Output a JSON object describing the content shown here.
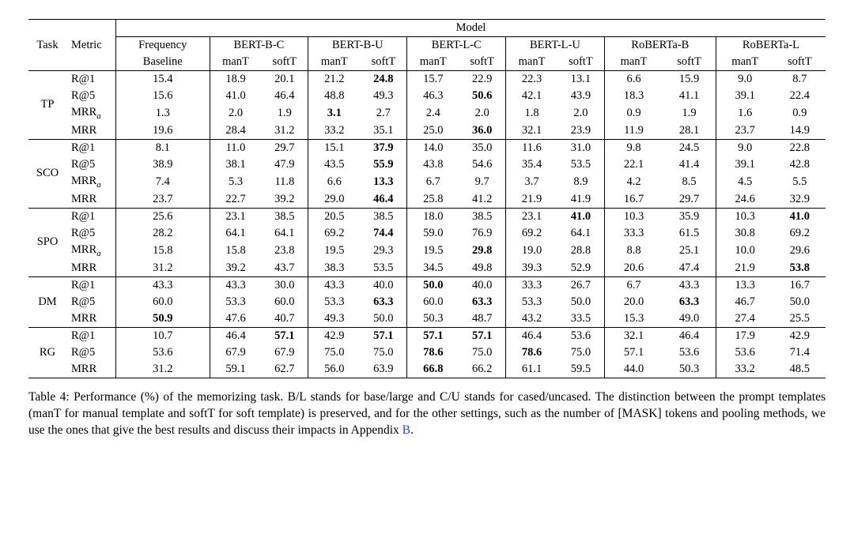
{
  "header": {
    "task": "Task",
    "metric": "Metric",
    "model": "Model",
    "freq1": "Frequency",
    "freq2": "Baseline",
    "models": [
      "BERT-B-C",
      "BERT-B-U",
      "BERT-L-C",
      "BERT-L-U",
      "RoBERTa-B",
      "RoBERTa-L"
    ],
    "sub": {
      "manT": "manT",
      "softT": "softT"
    }
  },
  "tasks": {
    "TP": {
      "rows": [
        {
          "metric": "R@1",
          "freq": "15.4",
          "v": [
            [
              "18.9",
              "20.1"
            ],
            [
              "21.2",
              "24.8"
            ],
            [
              "15.7",
              "22.9"
            ],
            [
              "22.3",
              "13.1"
            ],
            [
              "6.6",
              "15.9"
            ],
            [
              "9.0",
              "8.7"
            ]
          ],
          "bold": [
            [
              0,
              0
            ],
            [
              0,
              1
            ],
            [
              0,
              0
            ],
            [
              0,
              0
            ],
            [
              0,
              0
            ],
            [
              0,
              0
            ]
          ]
        },
        {
          "metric": "R@5",
          "freq": "15.6",
          "v": [
            [
              "41.0",
              "46.4"
            ],
            [
              "48.8",
              "49.3"
            ],
            [
              "46.3",
              "50.6"
            ],
            [
              "42.1",
              "43.9"
            ],
            [
              "18.3",
              "41.1"
            ],
            [
              "39.1",
              "22.4"
            ]
          ],
          "bold": [
            [
              0,
              0
            ],
            [
              0,
              0
            ],
            [
              0,
              1
            ],
            [
              0,
              0
            ],
            [
              0,
              0
            ],
            [
              0,
              0
            ]
          ]
        },
        {
          "metric": "MRRa",
          "freq": "1.3",
          "v": [
            [
              "2.0",
              "1.9"
            ],
            [
              "3.1",
              "2.7"
            ],
            [
              "2.4",
              "2.0"
            ],
            [
              "1.8",
              "2.0"
            ],
            [
              "0.9",
              "1.9"
            ],
            [
              "1.6",
              "0.9"
            ]
          ],
          "bold": [
            [
              0,
              0
            ],
            [
              1,
              0
            ],
            [
              0,
              0
            ],
            [
              0,
              0
            ],
            [
              0,
              0
            ],
            [
              0,
              0
            ]
          ]
        },
        {
          "metric": "MRR",
          "freq": "19.6",
          "v": [
            [
              "28.4",
              "31.2"
            ],
            [
              "33.2",
              "35.1"
            ],
            [
              "25.0",
              "36.0"
            ],
            [
              "32.1",
              "23.9"
            ],
            [
              "11.9",
              "28.1"
            ],
            [
              "23.7",
              "14.9"
            ]
          ],
          "bold": [
            [
              0,
              0
            ],
            [
              0,
              0
            ],
            [
              0,
              1
            ],
            [
              0,
              0
            ],
            [
              0,
              0
            ],
            [
              0,
              0
            ]
          ]
        }
      ]
    },
    "SCO": {
      "rows": [
        {
          "metric": "R@1",
          "freq": "8.1",
          "v": [
            [
              "11.0",
              "29.7"
            ],
            [
              "15.1",
              "37.9"
            ],
            [
              "14.0",
              "35.0"
            ],
            [
              "11.6",
              "31.0"
            ],
            [
              "9.8",
              "24.5"
            ],
            [
              "9.0",
              "22.8"
            ]
          ],
          "bold": [
            [
              0,
              0
            ],
            [
              0,
              1
            ],
            [
              0,
              0
            ],
            [
              0,
              0
            ],
            [
              0,
              0
            ],
            [
              0,
              0
            ]
          ]
        },
        {
          "metric": "R@5",
          "freq": "38.9",
          "v": [
            [
              "38.1",
              "47.9"
            ],
            [
              "43.5",
              "55.9"
            ],
            [
              "43.8",
              "54.6"
            ],
            [
              "35.4",
              "53.5"
            ],
            [
              "22.1",
              "41.4"
            ],
            [
              "39.1",
              "42.8"
            ]
          ],
          "bold": [
            [
              0,
              0
            ],
            [
              0,
              1
            ],
            [
              0,
              0
            ],
            [
              0,
              0
            ],
            [
              0,
              0
            ],
            [
              0,
              0
            ]
          ]
        },
        {
          "metric": "MRRa",
          "freq": "7.4",
          "v": [
            [
              "5.3",
              "11.8"
            ],
            [
              "6.6",
              "13.3"
            ],
            [
              "6.7",
              "9.7"
            ],
            [
              "3.7",
              "8.9"
            ],
            [
              "4.2",
              "8.5"
            ],
            [
              "4.5",
              "5.5"
            ]
          ],
          "bold": [
            [
              0,
              0
            ],
            [
              0,
              1
            ],
            [
              0,
              0
            ],
            [
              0,
              0
            ],
            [
              0,
              0
            ],
            [
              0,
              0
            ]
          ]
        },
        {
          "metric": "MRR",
          "freq": "23.7",
          "v": [
            [
              "22.7",
              "39.2"
            ],
            [
              "29.0",
              "46.4"
            ],
            [
              "25.8",
              "41.2"
            ],
            [
              "21.9",
              "41.9"
            ],
            [
              "16.7",
              "29.7"
            ],
            [
              "24.6",
              "32.9"
            ]
          ],
          "bold": [
            [
              0,
              0
            ],
            [
              0,
              1
            ],
            [
              0,
              0
            ],
            [
              0,
              0
            ],
            [
              0,
              0
            ],
            [
              0,
              0
            ]
          ]
        }
      ]
    },
    "SPO": {
      "rows": [
        {
          "metric": "R@1",
          "freq": "25.6",
          "v": [
            [
              "23.1",
              "38.5"
            ],
            [
              "20.5",
              "38.5"
            ],
            [
              "18.0",
              "38.5"
            ],
            [
              "23.1",
              "41.0"
            ],
            [
              "10.3",
              "35.9"
            ],
            [
              "10.3",
              "41.0"
            ]
          ],
          "bold": [
            [
              0,
              0
            ],
            [
              0,
              0
            ],
            [
              0,
              0
            ],
            [
              0,
              1
            ],
            [
              0,
              0
            ],
            [
              0,
              1
            ]
          ]
        },
        {
          "metric": "R@5",
          "freq": "28.2",
          "v": [
            [
              "64.1",
              "64.1"
            ],
            [
              "69.2",
              "74.4"
            ],
            [
              "59.0",
              "76.9"
            ],
            [
              "69.2",
              "64.1"
            ],
            [
              "33.3",
              "61.5"
            ],
            [
              "30.8",
              "69.2"
            ]
          ],
          "bold": [
            [
              0,
              0
            ],
            [
              0,
              1
            ],
            [
              0,
              0
            ],
            [
              0,
              0
            ],
            [
              0,
              0
            ],
            [
              0,
              0
            ]
          ]
        },
        {
          "metric": "MRRa",
          "freq": "15.8",
          "v": [
            [
              "15.8",
              "23.8"
            ],
            [
              "19.5",
              "29.3"
            ],
            [
              "19.5",
              "29.8"
            ],
            [
              "19.0",
              "28.8"
            ],
            [
              "8.8",
              "25.1"
            ],
            [
              "10.0",
              "29.6"
            ]
          ],
          "bold": [
            [
              0,
              0
            ],
            [
              0,
              0
            ],
            [
              0,
              1
            ],
            [
              0,
              0
            ],
            [
              0,
              0
            ],
            [
              0,
              0
            ]
          ]
        },
        {
          "metric": "MRR",
          "freq": "31.2",
          "v": [
            [
              "39.2",
              "43.7"
            ],
            [
              "38.3",
              "53.5"
            ],
            [
              "34.5",
              "49.8"
            ],
            [
              "39.3",
              "52.9"
            ],
            [
              "20.6",
              "47.4"
            ],
            [
              "21.9",
              "53.8"
            ]
          ],
          "bold": [
            [
              0,
              0
            ],
            [
              0,
              0
            ],
            [
              0,
              0
            ],
            [
              0,
              0
            ],
            [
              0,
              0
            ],
            [
              0,
              1
            ]
          ]
        }
      ]
    },
    "DM": {
      "rows": [
        {
          "metric": "R@1",
          "freq": "43.3",
          "v": [
            [
              "43.3",
              "30.0"
            ],
            [
              "43.3",
              "40.0"
            ],
            [
              "50.0",
              "40.0"
            ],
            [
              "33.3",
              "26.7"
            ],
            [
              "6.7",
              "43.3"
            ],
            [
              "13.3",
              "16.7"
            ]
          ],
          "bold": [
            [
              0,
              0
            ],
            [
              0,
              0
            ],
            [
              1,
              0
            ],
            [
              0,
              0
            ],
            [
              0,
              0
            ],
            [
              0,
              0
            ]
          ]
        },
        {
          "metric": "R@5",
          "freq": "60.0",
          "v": [
            [
              "53.3",
              "60.0"
            ],
            [
              "53.3",
              "63.3"
            ],
            [
              "60.0",
              "63.3"
            ],
            [
              "53.3",
              "50.0"
            ],
            [
              "20.0",
              "63.3"
            ],
            [
              "46.7",
              "50.0"
            ]
          ],
          "bold": [
            [
              0,
              0
            ],
            [
              0,
              1
            ],
            [
              0,
              1
            ],
            [
              0,
              0
            ],
            [
              0,
              1
            ],
            [
              0,
              0
            ]
          ]
        },
        {
          "metric": "MRR",
          "freq": "50.9",
          "v": [
            [
              "47.6",
              "40.7"
            ],
            [
              "49.3",
              "50.0"
            ],
            [
              "50.3",
              "48.7"
            ],
            [
              "43.2",
              "33.5"
            ],
            [
              "15.3",
              "49.0"
            ],
            [
              "27.4",
              "25.5"
            ]
          ],
          "bold": [
            [
              0,
              0
            ],
            [
              0,
              0
            ],
            [
              0,
              0
            ],
            [
              0,
              0
            ],
            [
              0,
              0
            ],
            [
              0,
              0
            ]
          ],
          "freq_bold": 1
        }
      ]
    },
    "RG": {
      "rows": [
        {
          "metric": "R@1",
          "freq": "10.7",
          "v": [
            [
              "46.4",
              "57.1"
            ],
            [
              "42.9",
              "57.1"
            ],
            [
              "57.1",
              "57.1"
            ],
            [
              "46.4",
              "53.6"
            ],
            [
              "32.1",
              "46.4"
            ],
            [
              "17.9",
              "42.9"
            ]
          ],
          "bold": [
            [
              0,
              1
            ],
            [
              0,
              1
            ],
            [
              1,
              1
            ],
            [
              0,
              0
            ],
            [
              0,
              0
            ],
            [
              0,
              0
            ]
          ]
        },
        {
          "metric": "R@5",
          "freq": "53.6",
          "v": [
            [
              "67.9",
              "67.9"
            ],
            [
              "75.0",
              "75.0"
            ],
            [
              "78.6",
              "75.0"
            ],
            [
              "78.6",
              "75.0"
            ],
            [
              "57.1",
              "53.6"
            ],
            [
              "53.6",
              "71.4"
            ]
          ],
          "bold": [
            [
              0,
              0
            ],
            [
              0,
              0
            ],
            [
              1,
              0
            ],
            [
              1,
              0
            ],
            [
              0,
              0
            ],
            [
              0,
              0
            ]
          ]
        },
        {
          "metric": "MRR",
          "freq": "31.2",
          "v": [
            [
              "59.1",
              "62.7"
            ],
            [
              "56.0",
              "63.9"
            ],
            [
              "66.8",
              "66.2"
            ],
            [
              "61.1",
              "59.5"
            ],
            [
              "44.0",
              "50.3"
            ],
            [
              "33.2",
              "48.5"
            ]
          ],
          "bold": [
            [
              0,
              0
            ],
            [
              0,
              0
            ],
            [
              1,
              0
            ],
            [
              0,
              0
            ],
            [
              0,
              0
            ],
            [
              0,
              0
            ]
          ]
        }
      ]
    }
  },
  "caption": {
    "prefix": "Table 4: Performance (%) of the memorizing task. B/L stands for base/large and C/U stands for cased/uncased. The distinction between the prompt templates (manT for manual template and softT for soft template) is preserved, and for the other settings, such as the number of [MASK] tokens and pooling methods, we use the ones that give the best results and discuss their impacts in Appendix ",
    "link": "B",
    "suffix": "."
  }
}
